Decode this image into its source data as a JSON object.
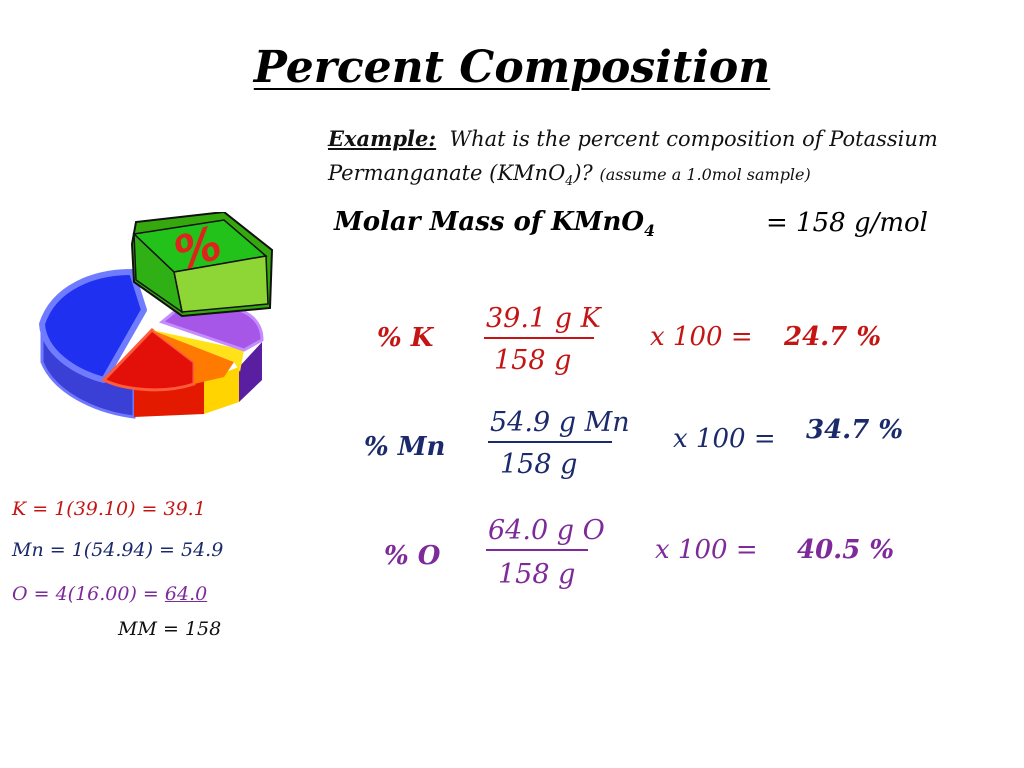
{
  "title": "Percent Composition",
  "example": {
    "label": "Example:",
    "question_line1": "What is the percent composition of Potassium",
    "question_line2_pre": "Permanganate (KMnO",
    "question_line2_sub": "4",
    "question_line2_post": ")?",
    "assumption": "(assume a 1.0mol sample)"
  },
  "molar_mass": {
    "label": "Molar Mass of KMnO",
    "label_sub": "4",
    "value": "= 158 g/mol"
  },
  "rows": [
    {
      "pct_label": "% K",
      "numerator": "39.1 g K",
      "denominator": "158 g",
      "times": "x 100 =",
      "result": "24.7 %"
    },
    {
      "pct_label": "% Mn",
      "numerator": "54.9 g Mn",
      "denominator": "158 g",
      "times": "x 100 =",
      "result": "34.7 %"
    },
    {
      "pct_label": "% O",
      "numerator": "64.0 g O",
      "denominator": "158 g",
      "times": "x 100 =",
      "result": "40.5 %"
    }
  ],
  "calculations": {
    "k": "K =    1(39.10) =  39.1",
    "mn": "Mn = 1(54.94) =  54.9",
    "o_pre": "O =   4(16.00) =",
    "o_value": "64.0",
    "mm": "MM  =   158"
  },
  "pie_icon": {
    "symbol": "%"
  },
  "colors": {
    "red": "#c41515",
    "navy": "#1b2a6b",
    "purple": "#7e2a9a"
  }
}
